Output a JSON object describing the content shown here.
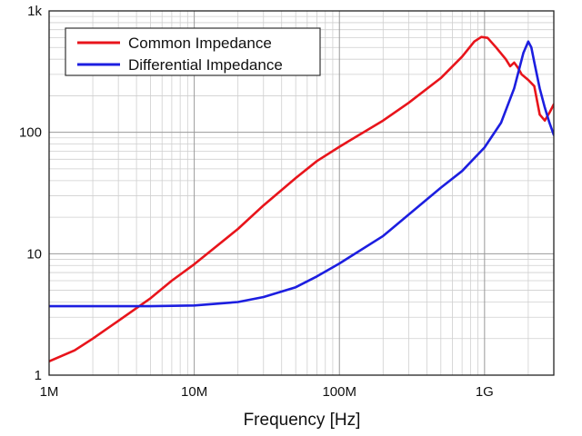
{
  "chart_data": {
    "type": "line",
    "title": "",
    "xlabel": "Frequency [Hz]",
    "ylabel": "",
    "xscale": "log",
    "yscale": "log",
    "xlim": [
      1000000,
      3000000000
    ],
    "ylim": [
      1,
      1000
    ],
    "x_ticks": [
      {
        "value": 1000000,
        "label": "1M"
      },
      {
        "value": 10000000,
        "label": "10M"
      },
      {
        "value": 100000000,
        "label": "100M"
      },
      {
        "value": 1000000000,
        "label": "1G"
      }
    ],
    "y_ticks": [
      {
        "value": 1,
        "label": "1"
      },
      {
        "value": 10,
        "label": "10"
      },
      {
        "value": 100,
        "label": "100"
      },
      {
        "value": 1000,
        "label": "1k"
      }
    ],
    "grid": true,
    "legend_position": "top-left",
    "series": [
      {
        "name": "Common Impedance",
        "color": "#e8141b",
        "x": [
          1000000,
          1500000,
          2000000,
          3000000,
          5000000,
          7000000,
          10000000,
          20000000,
          30000000,
          50000000,
          70000000,
          100000000,
          200000000,
          300000000,
          500000000,
          700000000,
          850000000,
          950000000,
          1050000000,
          1200000000,
          1400000000,
          1500000000,
          1600000000,
          1700000000,
          1800000000,
          2000000000,
          2200000000,
          2400000000,
          2600000000,
          2800000000,
          3000000000
        ],
        "y": [
          1.3,
          1.6,
          2.0,
          2.8,
          4.3,
          6.0,
          8.2,
          16,
          25,
          42,
          58,
          76,
          125,
          175,
          280,
          420,
          560,
          610,
          600,
          500,
          400,
          350,
          375,
          340,
          300,
          270,
          240,
          140,
          125,
          145,
          170
        ]
      },
      {
        "name": "Differential Impedance",
        "color": "#1c1ee0",
        "x": [
          1000000,
          2000000,
          5000000,
          10000000,
          20000000,
          30000000,
          50000000,
          70000000,
          100000000,
          200000000,
          300000000,
          500000000,
          700000000,
          1000000000,
          1300000000,
          1600000000,
          1850000000,
          2000000000,
          2100000000,
          2200000000,
          2400000000,
          2600000000,
          2800000000,
          3000000000
        ],
        "y": [
          3.7,
          3.7,
          3.7,
          3.75,
          4.0,
          4.4,
          5.3,
          6.5,
          8.3,
          14,
          21,
          35,
          48,
          75,
          120,
          230,
          450,
          560,
          500,
          380,
          230,
          160,
          120,
          95
        ]
      }
    ]
  }
}
